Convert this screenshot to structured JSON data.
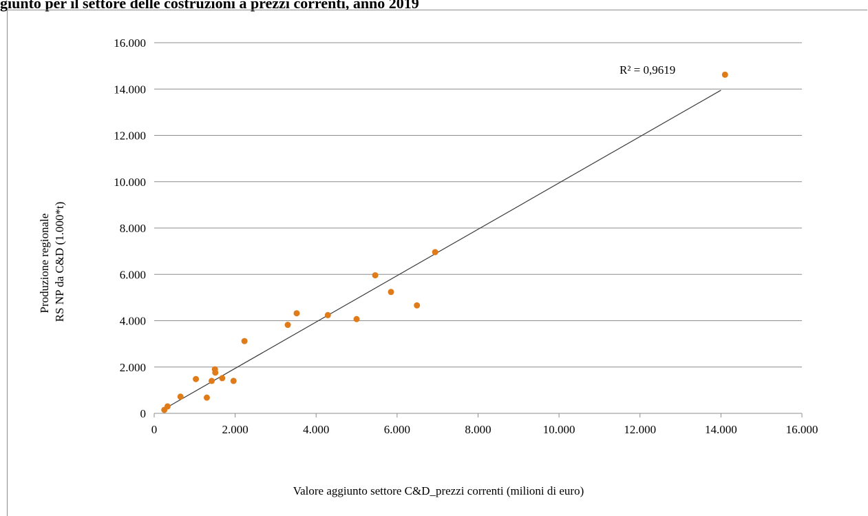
{
  "header": {
    "title": "giunto per il settore delle costruzioni a prezzi correnti, anno 2019"
  },
  "chart_data": {
    "type": "scatter",
    "title": "",
    "xlabel": "Valore aggiunto settore C&D_prezzi correnti (milioni di euro)",
    "ylabel_lines": [
      "Produzione  regionale",
      "RS NP da C&D (1.000*t)"
    ],
    "xlim": [
      0,
      16000
    ],
    "ylim": [
      0,
      16000
    ],
    "x_ticks": [
      0,
      2000,
      4000,
      6000,
      8000,
      10000,
      12000,
      14000,
      16000
    ],
    "y_ticks": [
      0,
      2000,
      4000,
      6000,
      8000,
      10000,
      12000,
      14000,
      16000
    ],
    "x_tick_labels": [
      "0",
      "2.000",
      "4.000",
      "6.000",
      "8.000",
      "10.000",
      "12.000",
      "14.000",
      "16.000"
    ],
    "y_tick_labels": [
      "0",
      "2.000",
      "4.000",
      "6.000",
      "8.000",
      "10.000",
      "12.000",
      "14.000",
      "16.000"
    ],
    "grid": "horizontal",
    "marker_color": "#e07b1a",
    "trendline_color": "#3a3a3a",
    "points": [
      {
        "x": 250,
        "y": 150
      },
      {
        "x": 330,
        "y": 300
      },
      {
        "x": 650,
        "y": 720
      },
      {
        "x": 1030,
        "y": 1480
      },
      {
        "x": 1300,
        "y": 680
      },
      {
        "x": 1420,
        "y": 1400
      },
      {
        "x": 1500,
        "y": 1900
      },
      {
        "x": 1510,
        "y": 1760
      },
      {
        "x": 1680,
        "y": 1520
      },
      {
        "x": 1960,
        "y": 1400
      },
      {
        "x": 2230,
        "y": 3120
      },
      {
        "x": 3300,
        "y": 3820
      },
      {
        "x": 3520,
        "y": 4320
      },
      {
        "x": 4290,
        "y": 4240
      },
      {
        "x": 5000,
        "y": 4070
      },
      {
        "x": 5460,
        "y": 5960
      },
      {
        "x": 5850,
        "y": 5240
      },
      {
        "x": 6490,
        "y": 4660
      },
      {
        "x": 6940,
        "y": 6960
      },
      {
        "x": 14100,
        "y": 14620
      }
    ],
    "trendline": {
      "x_start": 250,
      "y_start": 190,
      "x_end": 14000,
      "y_end": 13950
    },
    "annotation": "R² = 0,9619"
  }
}
